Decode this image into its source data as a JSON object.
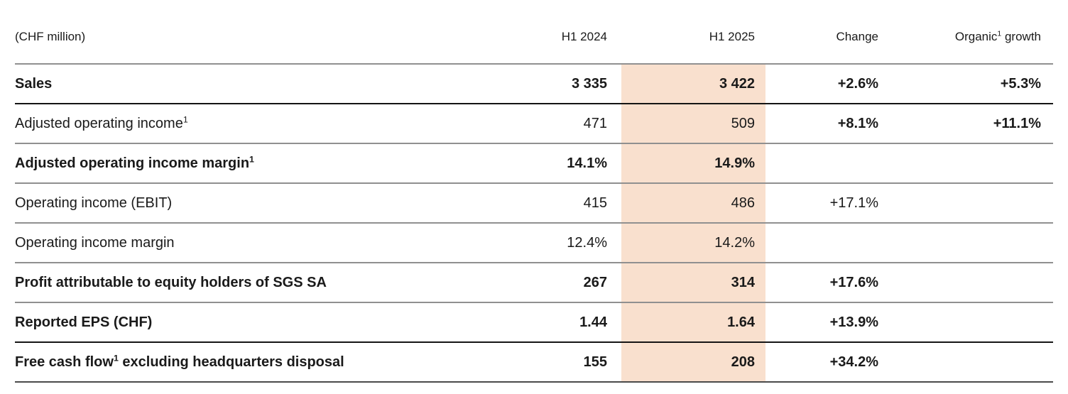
{
  "table": {
    "unit_label": "(CHF million)",
    "colors": {
      "highlight": "#f9e0ce",
      "rule_gray": "#909090",
      "rule_dark": "#4a4a4a",
      "rule_black": "#151515",
      "text": "#1a1a1a"
    },
    "columns": [
      {
        "key": "h1_2024",
        "label_pre": "H1 2024",
        "label_sup": "",
        "label_post": ""
      },
      {
        "key": "h1_2025",
        "label_pre": "H1 2025",
        "label_sup": "",
        "label_post": "",
        "highlight": true
      },
      {
        "key": "change",
        "label_pre": "Change",
        "label_sup": "",
        "label_post": ""
      },
      {
        "key": "organic",
        "label_pre": "Organic",
        "label_sup": "1",
        "label_post": " growth"
      }
    ],
    "rows": [
      {
        "label_pre": "Sales",
        "label_sup": "",
        "label_post": "",
        "label_bold": true,
        "value_bold": true,
        "change_bold": true,
        "h1_2024": "3 335",
        "h1_2025": "3 422",
        "change": "+2.6%",
        "organic": "+5.3%",
        "border": "black"
      },
      {
        "label_pre": "Adjusted operating income",
        "label_sup": "1",
        "label_post": "",
        "label_bold": false,
        "value_bold": false,
        "change_bold": true,
        "h1_2024": "471",
        "h1_2025": "509",
        "change": "+8.1%",
        "organic": "+11.1%",
        "border": "gray"
      },
      {
        "label_pre": "Adjusted operating income margin",
        "label_sup": "1",
        "label_post": "",
        "label_bold": true,
        "value_bold": true,
        "change_bold": false,
        "h1_2024": "14.1%",
        "h1_2025": "14.9%",
        "change": "",
        "organic": "",
        "border": "gray"
      },
      {
        "label_pre": "Operating income (EBIT)",
        "label_sup": "",
        "label_post": "",
        "label_bold": false,
        "value_bold": false,
        "change_bold": false,
        "h1_2024": "415",
        "h1_2025": "486",
        "change": "+17.1%",
        "organic": "",
        "border": "gray"
      },
      {
        "label_pre": "Operating income margin",
        "label_sup": "",
        "label_post": "",
        "label_bold": false,
        "value_bold": false,
        "change_bold": false,
        "h1_2024": "12.4%",
        "h1_2025": "14.2%",
        "change": "",
        "organic": "",
        "border": "gray"
      },
      {
        "label_pre": "Profit attributable to equity holders of SGS SA",
        "label_sup": "",
        "label_post": "",
        "label_bold": true,
        "value_bold": true,
        "change_bold": true,
        "h1_2024": "267",
        "h1_2025": "314",
        "change": "+17.6%",
        "organic": "",
        "border": "gray"
      },
      {
        "label_pre": "Reported EPS (CHF)",
        "label_sup": "",
        "label_post": "",
        "label_bold": true,
        "value_bold": true,
        "change_bold": true,
        "h1_2024": "1.44",
        "h1_2025": "1.64",
        "change": "+13.9%",
        "organic": "",
        "border": "black"
      },
      {
        "label_pre": "Free cash flow",
        "label_sup": "1",
        "label_post": " excluding headquarters disposal",
        "label_bold": true,
        "value_bold": true,
        "change_bold": true,
        "h1_2024": "155",
        "h1_2025": "208",
        "change": "+34.2%",
        "organic": "",
        "border": "dark"
      }
    ]
  }
}
